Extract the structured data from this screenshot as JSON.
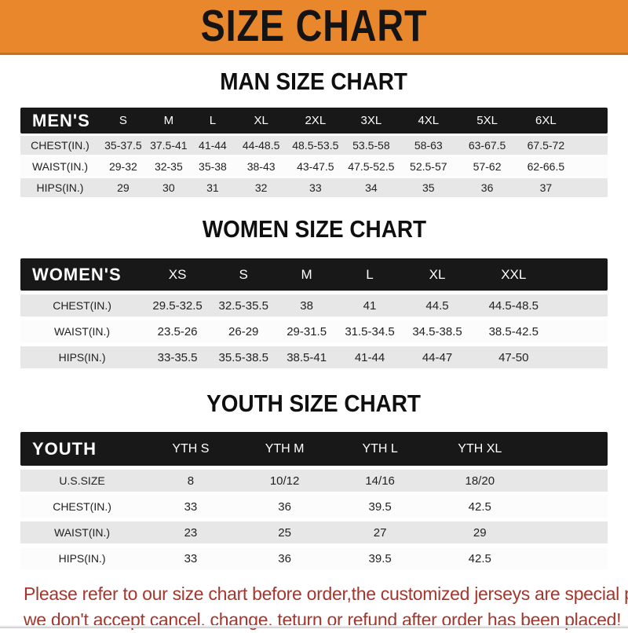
{
  "banner": {
    "title": "SIZE CHART",
    "bg_color": "#E8872B"
  },
  "sections": [
    {
      "id": "men",
      "heading": "MAN SIZE CHART",
      "header_label": "MEN'S",
      "columns": [
        "S",
        "M",
        "L",
        "XL",
        "2XL",
        "3XL",
        "4XL",
        "5XL",
        "6XL"
      ],
      "rows": [
        {
          "label": "CHEST(IN.)",
          "values": [
            "35-37.5",
            "37.5-41",
            "41-44",
            "44-48.5",
            "48.5-53.5",
            "53.5-58",
            "58-63",
            "63-67.5",
            "67.5-72"
          ]
        },
        {
          "label": "WAIST(IN.)",
          "values": [
            "29-32",
            "32-35",
            "35-38",
            "38-43",
            "43-47.5",
            "47.5-52.5",
            "52.5-57",
            "57-62",
            "62-66.5"
          ]
        },
        {
          "label": "HIPS(IN.)",
          "values": [
            "29",
            "30",
            "31",
            "32",
            "33",
            "34",
            "35",
            "36",
            "37"
          ]
        }
      ]
    },
    {
      "id": "women",
      "heading": "WOMEN SIZE CHART",
      "header_label": "WOMEN'S",
      "columns": [
        "XS",
        "S",
        "M",
        "L",
        "XL",
        "XXL"
      ],
      "rows": [
        {
          "label": "CHEST(IN.)",
          "values": [
            "29.5-32.5",
            "32.5-35.5",
            "38",
            "41",
            "44.5",
            "44.5-48.5"
          ]
        },
        {
          "label": "WAIST(IN.)",
          "values": [
            "23.5-26",
            "26-29",
            "29-31.5",
            "31.5-34.5",
            "34.5-38.5",
            "38.5-42.5"
          ]
        },
        {
          "label": "HIPS(IN.)",
          "values": [
            "33-35.5",
            "35.5-38.5",
            "38.5-41",
            "41-44",
            "44-47",
            "47-50"
          ]
        }
      ]
    },
    {
      "id": "youth",
      "heading": "YOUTH SIZE CHART",
      "header_label": "YOUTH",
      "columns": [
        "YTH S",
        "YTH M",
        "YTH L",
        "YTH XL"
      ],
      "rows": [
        {
          "label": "U.S.SIZE",
          "values": [
            "8",
            "10/12",
            "14/16",
            "18/20"
          ]
        },
        {
          "label": "CHEST(IN.)",
          "values": [
            "33",
            "36",
            "39.5",
            "42.5"
          ]
        },
        {
          "label": "WAIST(IN.)",
          "values": [
            "23",
            "25",
            "27",
            "29"
          ]
        },
        {
          "label": "HIPS(IN.)",
          "values": [
            "33",
            "36",
            "39.5",
            "42.5"
          ]
        }
      ]
    }
  ],
  "footer": {
    "lines": [
      "Please refer to our size chart before order,the customized jerseys are special products,",
      "we don't accept cancel, change, teturn or refund after order has been placed!"
    ],
    "text_color": "#A4362D"
  }
}
